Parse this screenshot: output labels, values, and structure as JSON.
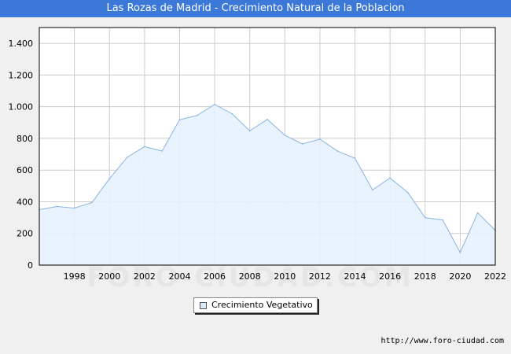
{
  "header": {
    "title": "Las Rozas de Madrid - Crecimiento Natural de la Poblacion"
  },
  "footer": {
    "url": "http://www.foro-ciudad.com"
  },
  "watermark": "FORO-CIUDAD.COM",
  "colors": {
    "title_bar": "#3c78d8",
    "area_fill": "#e6f2fd",
    "area_line": "#8ab4e0",
    "grid": "#cccccc"
  },
  "chart_data": {
    "type": "area",
    "title": "Las Rozas de Madrid - Crecimiento Natural de la Poblacion",
    "xlabel": "",
    "ylabel": "",
    "xlim": [
      1996,
      2022
    ],
    "ylim": [
      0,
      1500
    ],
    "grid": true,
    "legend_position": "bottom-center",
    "x_ticks": [
      1998,
      2000,
      2002,
      2004,
      2006,
      2008,
      2010,
      2012,
      2014,
      2016,
      2018,
      2020,
      2022
    ],
    "y_ticks": [
      0,
      200,
      400,
      600,
      800,
      1000,
      1200,
      1400
    ],
    "y_tick_labels": [
      "0",
      "200",
      "400",
      "600",
      "800",
      "1.000",
      "1.200",
      "1.400"
    ],
    "x": [
      1996,
      1997,
      1998,
      1999,
      2000,
      2001,
      2002,
      2003,
      2004,
      2005,
      2006,
      2007,
      2008,
      2009,
      2010,
      2011,
      2012,
      2013,
      2014,
      2015,
      2016,
      2017,
      2018,
      2019,
      2020,
      2021,
      2022
    ],
    "series": [
      {
        "name": "Crecimiento Vegetativo",
        "values": [
          350,
          370,
          360,
          395,
          545,
          680,
          748,
          720,
          918,
          945,
          1015,
          955,
          848,
          920,
          820,
          765,
          795,
          720,
          675,
          475,
          550,
          460,
          300,
          285,
          80,
          330,
          220
        ]
      }
    ]
  }
}
